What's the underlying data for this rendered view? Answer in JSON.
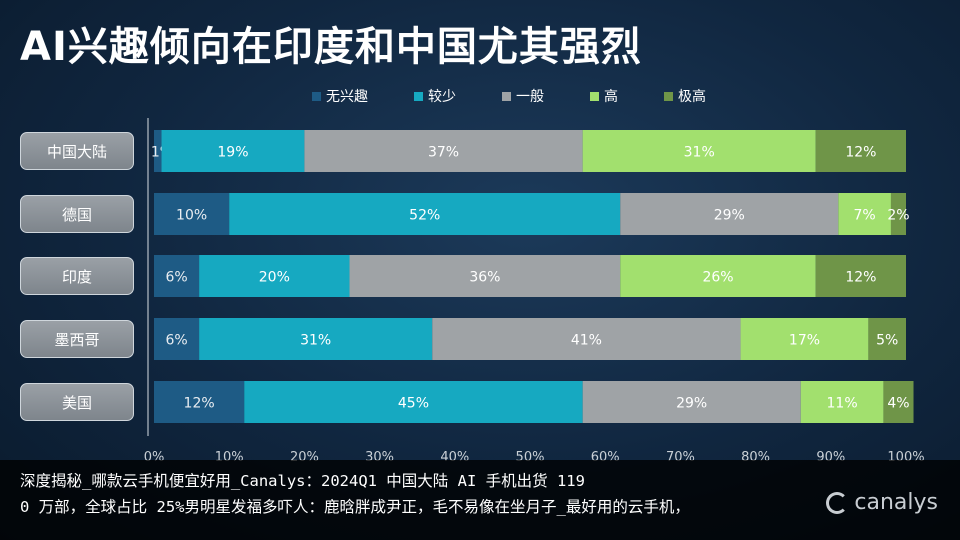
{
  "chart_data": {
    "type": "bar",
    "orientation": "horizontal",
    "stacked": "100%",
    "title": "AI兴趣倾向在印度和中国尤其强烈",
    "categories": [
      "中国大陆",
      "德国",
      "印度",
      "墨西哥",
      "美国"
    ],
    "series": [
      {
        "name": "无兴趣",
        "color": "#1e5b85",
        "values": [
          1,
          10,
          6,
          6,
          12
        ]
      },
      {
        "name": "较少",
        "color": "#16a9c1",
        "values": [
          19,
          52,
          20,
          31,
          45
        ]
      },
      {
        "name": "一般",
        "color": "#9fa3a6",
        "values": [
          37,
          29,
          36,
          41,
          29
        ]
      },
      {
        "name": "高",
        "color": "#a2e06e",
        "values": [
          31,
          7,
          26,
          17,
          11
        ]
      },
      {
        "name": "极高",
        "color": "#6f9548",
        "values": [
          12,
          2,
          12,
          5,
          4
        ]
      }
    ],
    "data_labels": [
      [
        "1%",
        "19%",
        "37%",
        "31%",
        "12%"
      ],
      [
        "10%",
        "52%",
        "29%",
        "7%",
        "2%"
      ],
      [
        "6%",
        "20%",
        "36%",
        "26%",
        "12%"
      ],
      [
        "6%",
        "31%",
        "41%",
        "17%",
        "5%"
      ],
      [
        "12%",
        "45%",
        "29%",
        "11%",
        "4%"
      ]
    ],
    "xlim": [
      0,
      100
    ],
    "x_ticks": [
      "0%",
      "10%",
      "20%",
      "30%",
      "40%",
      "50%",
      "60%",
      "70%",
      "80%",
      "90%",
      "100%"
    ],
    "legend_position": "top",
    "grid": false
  },
  "caption": {
    "line1": "深度揭秘_哪款云手机便宜好用_Canalys：2024Q1 中国大陆 AI 手机出货 119",
    "line2": "0 万部，全球占比 25%男明星发福多吓人：鹿晗胖成尹正，毛不易像在坐月子_最好用的云手机，"
  },
  "logo": {
    "text": "canalys"
  }
}
